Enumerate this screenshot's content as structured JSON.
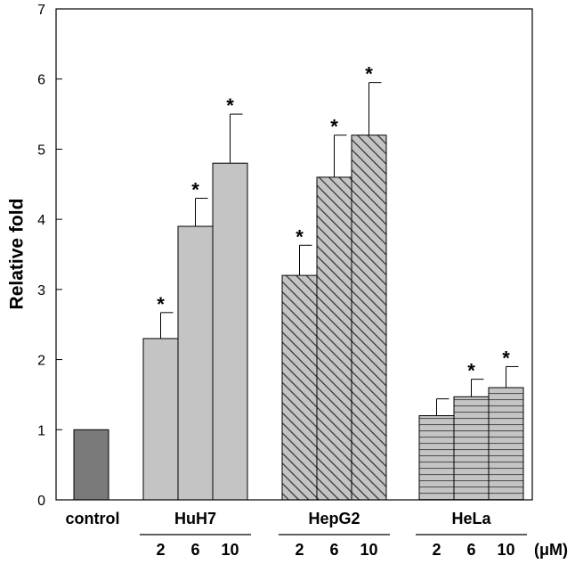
{
  "chart_data": {
    "type": "bar",
    "ylabel": "Relative fold",
    "ylim": [
      0,
      7
    ],
    "yticks": [
      0,
      1,
      2,
      3,
      4,
      5,
      6,
      7
    ],
    "unit": "(μM)",
    "control": {
      "label": "control",
      "value": 1.0,
      "color": "#7a7a7a"
    },
    "groups": [
      {
        "name": "HuH7",
        "pattern": "solid",
        "color": "#c4c4c4",
        "bars": [
          {
            "conc": "2",
            "value": 2.3,
            "error": 0.37,
            "significant": true
          },
          {
            "conc": "6",
            "value": 3.9,
            "error": 0.4,
            "significant": true
          },
          {
            "conc": "10",
            "value": 4.8,
            "error": 0.7,
            "significant": true
          }
        ]
      },
      {
        "name": "HepG2",
        "pattern": "diagonal",
        "color": "#c4c4c4",
        "bars": [
          {
            "conc": "2",
            "value": 3.2,
            "error": 0.43,
            "significant": true
          },
          {
            "conc": "6",
            "value": 4.6,
            "error": 0.6,
            "significant": true
          },
          {
            "conc": "10",
            "value": 5.2,
            "error": 0.75,
            "significant": true
          }
        ]
      },
      {
        "name": "HeLa",
        "pattern": "horizontal",
        "color": "#c4c4c4",
        "bars": [
          {
            "conc": "2",
            "value": 1.2,
            "error": 0.24,
            "significant": false
          },
          {
            "conc": "6",
            "value": 1.47,
            "error": 0.25,
            "significant": true
          },
          {
            "conc": "10",
            "value": 1.6,
            "error": 0.3,
            "significant": true
          }
        ]
      }
    ],
    "significance_marker": "*"
  }
}
